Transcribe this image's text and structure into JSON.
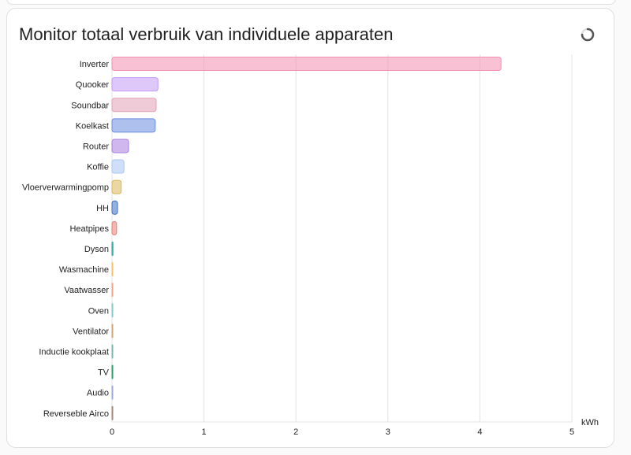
{
  "card": {
    "title": "Monitor totaal verbruik van individuele apparaten",
    "refresh_icon": "loading-spinner-icon"
  },
  "chart_data": {
    "type": "bar",
    "orientation": "horizontal",
    "title": "Monitor totaal verbruik van individuele apparaten",
    "xlabel": "",
    "ylabel": "",
    "x_unit": "kWh",
    "xlim": [
      0,
      5
    ],
    "x_ticks": [
      "0",
      "1",
      "2",
      "3",
      "4",
      "5"
    ],
    "grid": true,
    "categories": [
      "Inverter",
      "Quooker",
      "Soundbar",
      "Koelkast",
      "Router",
      "Koffie",
      "Vloerverwarmingpomp",
      "HH",
      "Heatpipes",
      "Dyson",
      "Wasmachine",
      "Vaatwasser",
      "Oven",
      "Ventilator",
      "Inductie kookplaat",
      "TV",
      "Audio",
      "Reverseble Airco"
    ],
    "values": [
      4.23,
      0.5,
      0.48,
      0.47,
      0.18,
      0.13,
      0.1,
      0.06,
      0.05,
      0.01,
      0.005,
      0.005,
      0.005,
      0.005,
      0.005,
      0.005,
      0.005,
      0.005
    ],
    "colors": [
      "#f48fb1",
      "#c39bf5",
      "#e2a1b8",
      "#6a8de0",
      "#a97ee0",
      "#a9c4f4",
      "#d8b75a",
      "#3f6fc2",
      "#e77f72",
      "#26a69a",
      "#f5c26b",
      "#f4a18a",
      "#80cbc4",
      "#d4a373",
      "#7ab8ad",
      "#2e9e6e",
      "#9fa8da",
      "#a1887f"
    ]
  }
}
